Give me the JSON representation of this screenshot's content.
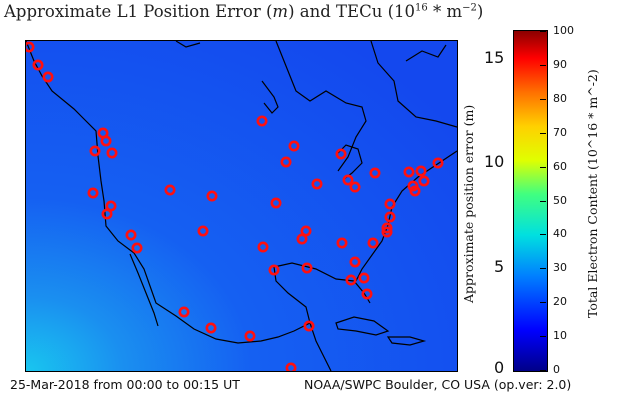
{
  "title": {
    "text_a": "Approximate L1 Position Error (",
    "m": "m",
    "text_b": ") and TECu (10",
    "exp": "16",
    "text_c": " * m",
    "exp2": "−2",
    "text_d": ")"
  },
  "footer": {
    "left": "25-Mar-2018 from 00:00 to 00:15 UT",
    "right": "NOAA/SWPC Boulder, CO USA (op.ver: 2.0)"
  },
  "position_axis": {
    "label": "Approximate position error (m)",
    "ticks": [
      "15",
      "10",
      "5",
      "0"
    ]
  },
  "colorbar": {
    "label": "Total Electron Content (10^16 * m^-2)",
    "ticks": [
      "100",
      "90",
      "80",
      "70",
      "60",
      "50",
      "40",
      "30",
      "20",
      "10",
      "0"
    ]
  },
  "stations": [
    [
      3,
      6
    ],
    [
      12,
      24
    ],
    [
      22,
      36
    ],
    [
      77,
      92
    ],
    [
      80,
      100
    ],
    [
      69,
      110
    ],
    [
      86,
      112
    ],
    [
      67,
      152
    ],
    [
      85,
      165
    ],
    [
      81,
      173
    ],
    [
      105,
      194
    ],
    [
      111,
      207
    ],
    [
      144,
      149
    ],
    [
      186,
      155
    ],
    [
      177,
      190
    ],
    [
      236,
      80
    ],
    [
      250,
      162
    ],
    [
      237,
      206
    ],
    [
      248,
      229
    ],
    [
      268,
      105
    ],
    [
      260,
      121
    ],
    [
      280,
      190
    ],
    [
      276,
      198
    ],
    [
      281,
      227
    ],
    [
      315,
      113
    ],
    [
      291,
      143
    ],
    [
      322,
      139
    ],
    [
      329,
      146
    ],
    [
      349,
      132
    ],
    [
      383,
      131
    ],
    [
      398,
      140
    ],
    [
      395,
      130
    ],
    [
      387,
      145
    ],
    [
      389,
      150
    ],
    [
      412,
      122
    ],
    [
      364,
      163
    ],
    [
      364,
      176
    ],
    [
      361,
      187
    ],
    [
      347,
      202
    ],
    [
      361,
      191
    ],
    [
      316,
      202
    ],
    [
      329,
      221
    ],
    [
      338,
      237
    ],
    [
      325,
      239
    ],
    [
      341,
      253
    ],
    [
      158,
      271
    ],
    [
      185,
      287
    ],
    [
      224,
      295
    ],
    [
      283,
      285
    ],
    [
      265,
      327
    ]
  ]
}
